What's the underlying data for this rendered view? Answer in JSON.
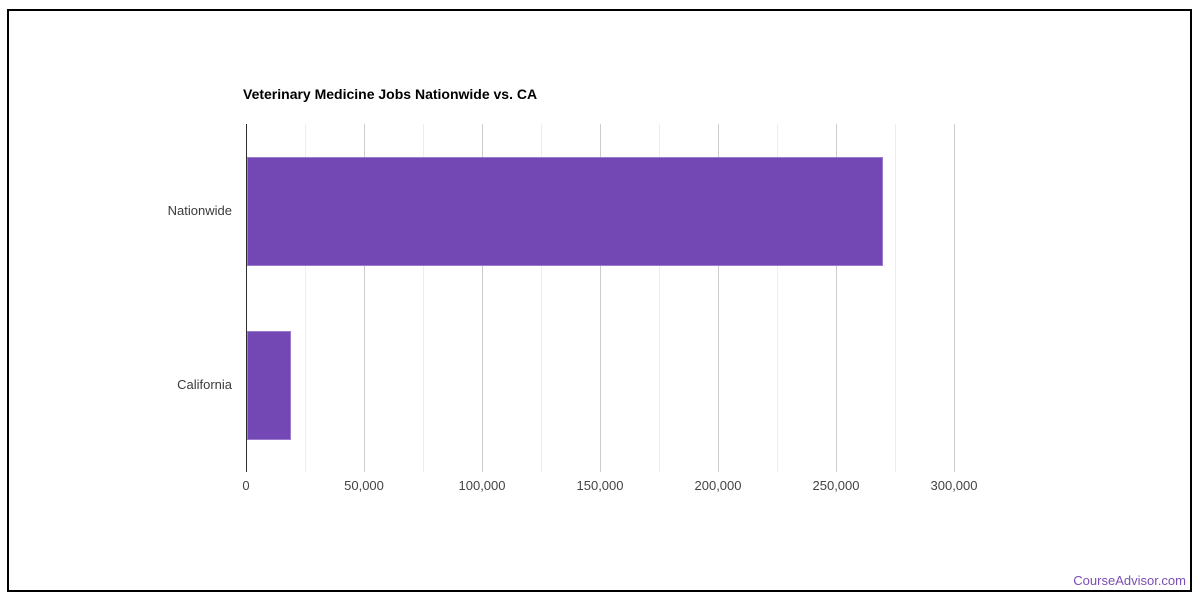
{
  "page": {
    "footer_link": "CourseAdvisor.com"
  },
  "colors": {
    "bar_fill": "#7348b4",
    "bar_stroke": "#9a7bd0",
    "major_gridline": "#cccccc",
    "minor_gridline": "#ededed",
    "axis_baseline": "#2e2e2e",
    "title_text": "#000000",
    "tick_text": "#444444",
    "category_text": "#3b3b3b",
    "footer_link": "#7a4fb5",
    "frame_border": "#000000",
    "background": "#ffffff"
  },
  "chart_data": {
    "type": "bar",
    "orientation": "horizontal",
    "title": "Veterinary Medicine Jobs Nationwide vs. CA",
    "categories": [
      "Nationwide",
      "California"
    ],
    "values": [
      270000,
      19000
    ],
    "xlabel": "",
    "ylabel": "",
    "xlim": [
      0,
      324000
    ],
    "x_major_tick_step": 50000,
    "x_minor_grid_step": 25000,
    "x_gridline_max": 300000,
    "x_tick_labels": [
      "0",
      "50,000",
      "100,000",
      "150,000",
      "200,000",
      "250,000",
      "300,000"
    ],
    "grid": "on",
    "legend": "none"
  }
}
